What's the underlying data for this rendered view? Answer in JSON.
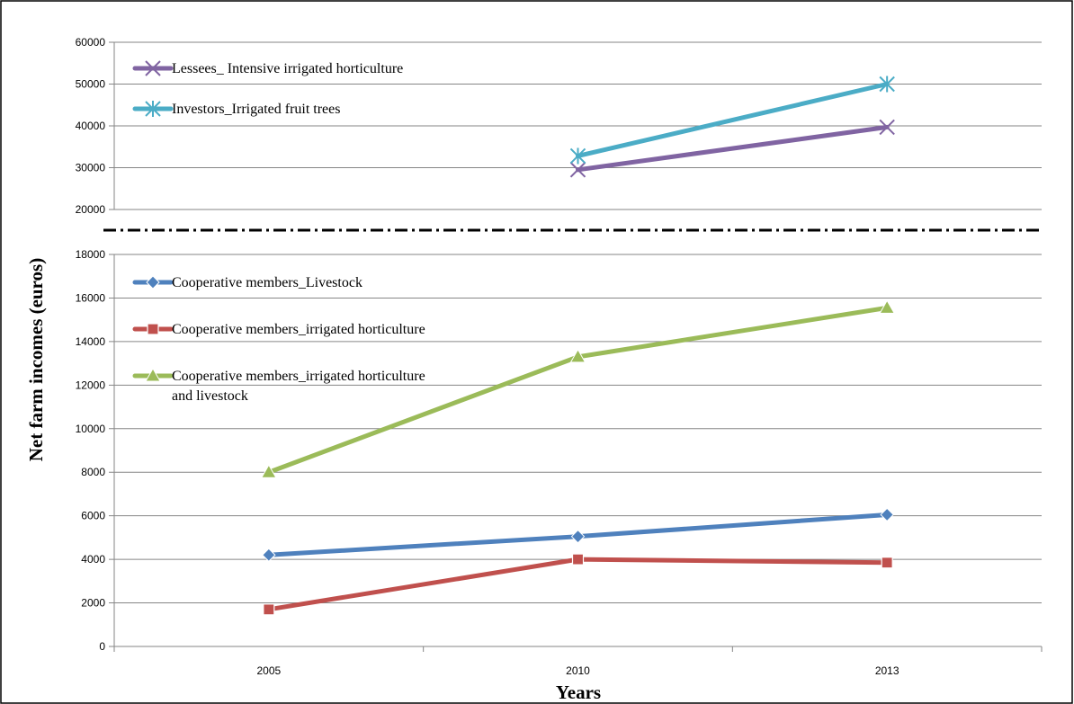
{
  "chart_data": [
    {
      "panel": "upper",
      "type": "line",
      "categories": [
        "2005",
        "2010",
        "2013"
      ],
      "ylim": [
        20000,
        60000
      ],
      "yticks": [
        20000,
        30000,
        40000,
        50000,
        60000
      ],
      "grid": true,
      "legend_position": "top-left",
      "series": [
        {
          "name": "Lessees_ Intensive irrigated  horticulture",
          "marker": "x",
          "color": "#8064a2",
          "values": [
            null,
            29500,
            39700
          ]
        },
        {
          "name": "Investors_Irrigated fruit trees",
          "marker": "star",
          "color": "#4bacc6",
          "values": [
            null,
            32800,
            50000
          ]
        }
      ]
    },
    {
      "panel": "lower",
      "type": "line",
      "categories": [
        "2005",
        "2010",
        "2013"
      ],
      "ylim": [
        0,
        18000
      ],
      "yticks": [
        0,
        2000,
        4000,
        6000,
        8000,
        10000,
        12000,
        14000,
        16000,
        18000
      ],
      "grid": true,
      "legend_position": "top-left",
      "series": [
        {
          "name": "Cooperative  members_Livestock",
          "marker": "diamond",
          "color": "#4f81bd",
          "values": [
            4200,
            5050,
            6050
          ]
        },
        {
          "name": "Cooperative  members_irrigated  horticulture",
          "marker": "square",
          "color": "#c0504d",
          "values": [
            1700,
            4000,
            3850
          ]
        },
        {
          "name": "Cooperative  members_irrigated  horticulture",
          "name_line2": "and livestock",
          "marker": "triangle",
          "color": "#9bbb59",
          "values": [
            8000,
            13300,
            15550
          ]
        }
      ]
    }
  ],
  "axes": {
    "ylabel": "Net farm incomes (euros)",
    "xlabel": "Years"
  }
}
